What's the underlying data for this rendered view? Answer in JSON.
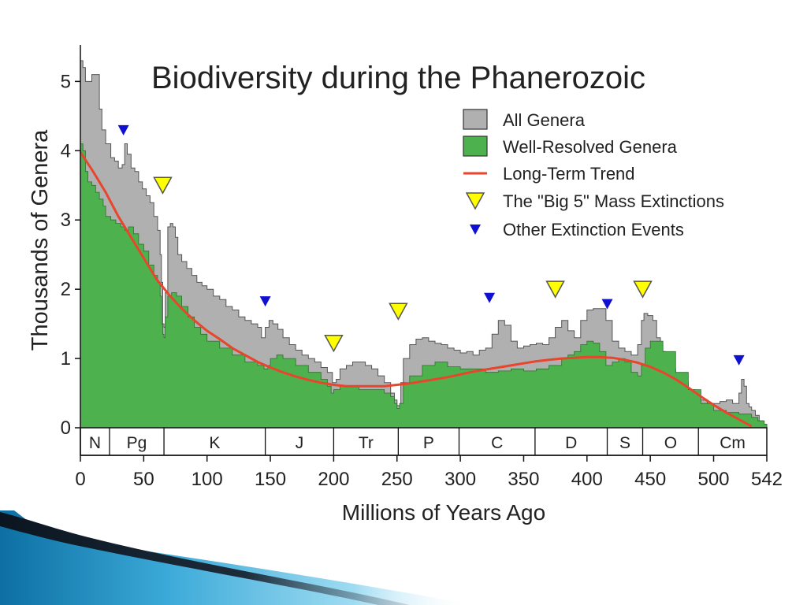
{
  "slide": {
    "accent_colors": [
      "#1b8fc4",
      "#5fc6ea",
      "#101a24"
    ]
  },
  "chart_data": {
    "type": "area",
    "title": "Biodiversity during the Phanerozoic",
    "xlabel": "Millions of Years Ago",
    "ylabel": "Thousands of Genera",
    "xlim": [
      0,
      542
    ],
    "ylim": [
      0,
      5.3
    ],
    "x_ticks": [
      0,
      50,
      100,
      150,
      200,
      250,
      300,
      350,
      400,
      450,
      500,
      542
    ],
    "y_ticks": [
      0,
      1,
      2,
      3,
      4,
      5
    ],
    "legend_position": "top-right",
    "colors": {
      "all_genera": "#b0b0b0",
      "well_resolved": "#4db24d",
      "trend": "#e8452c",
      "big5": "#ffff00",
      "other": "#1010d0"
    },
    "legend": [
      {
        "label": "All Genera",
        "kind": "box",
        "color": "#b0b0b0"
      },
      {
        "label": "Well-Resolved Genera",
        "kind": "box",
        "color": "#4db24d"
      },
      {
        "label": "Long-Term Trend",
        "kind": "line",
        "color": "#e8452c"
      },
      {
        "label": "The \"Big 5\" Mass Extinctions",
        "kind": "big-triangle",
        "color": "#ffff00"
      },
      {
        "label": "Other Extinction Events",
        "kind": "small-triangle",
        "color": "#1010d0"
      }
    ],
    "series": [
      {
        "name": "All Genera",
        "x": [
          0,
          2,
          4,
          6,
          9,
          12,
          15,
          17,
          20,
          24,
          27,
          30,
          33,
          35,
          37,
          40,
          43,
          46,
          49,
          52,
          55,
          58,
          61,
          63,
          64,
          65,
          66,
          67,
          69,
          71,
          73,
          75,
          77,
          80,
          84,
          88,
          92,
          96,
          100,
          105,
          110,
          115,
          120,
          125,
          130,
          135,
          140,
          143,
          146,
          149,
          152,
          156,
          160,
          165,
          170,
          175,
          180,
          185,
          190,
          195,
          199,
          202,
          205,
          210,
          215,
          220,
          225,
          230,
          235,
          240,
          245,
          248,
          250,
          252,
          253,
          255,
          260,
          265,
          270,
          275,
          280,
          285,
          290,
          295,
          300,
          305,
          310,
          315,
          320,
          325,
          330,
          335,
          340,
          345,
          350,
          355,
          360,
          365,
          370,
          375,
          380,
          385,
          390,
          395,
          400,
          405,
          410,
          415,
          420,
          425,
          430,
          435,
          440,
          443,
          445,
          448,
          452,
          455,
          458,
          462,
          466,
          470,
          475,
          480,
          485,
          490,
          495,
          500,
          505,
          510,
          515,
          518,
          520,
          522,
          524,
          526,
          528,
          530,
          533,
          536,
          539,
          542
        ],
        "values": [
          5.3,
          5.2,
          5.0,
          5.0,
          5.1,
          5.1,
          4.6,
          4.3,
          4.1,
          3.9,
          3.85,
          3.75,
          3.8,
          4.1,
          3.95,
          3.75,
          3.7,
          3.55,
          3.45,
          3.35,
          3.25,
          3.05,
          2.85,
          2.5,
          2.1,
          1.5,
          1.45,
          1.95,
          2.9,
          2.95,
          2.9,
          2.75,
          2.5,
          2.4,
          2.3,
          2.2,
          2.1,
          2.05,
          2.0,
          1.9,
          1.85,
          1.75,
          1.7,
          1.6,
          1.55,
          1.5,
          1.45,
          1.3,
          1.45,
          1.55,
          1.5,
          1.42,
          1.3,
          1.2,
          1.12,
          1.05,
          1.0,
          0.95,
          0.87,
          0.8,
          0.65,
          0.7,
          0.85,
          0.9,
          0.95,
          0.95,
          0.9,
          0.85,
          0.75,
          0.65,
          0.5,
          0.4,
          0.32,
          0.3,
          0.65,
          1.0,
          1.2,
          1.28,
          1.3,
          1.25,
          1.22,
          1.2,
          1.15,
          1.12,
          1.08,
          1.1,
          1.05,
          1.12,
          1.15,
          1.35,
          1.55,
          1.48,
          1.25,
          1.15,
          1.18,
          1.2,
          1.22,
          1.2,
          1.3,
          1.45,
          1.55,
          1.4,
          1.3,
          1.55,
          1.7,
          1.72,
          1.72,
          1.55,
          1.25,
          1.15,
          1.1,
          1.05,
          1.2,
          1.55,
          1.65,
          1.62,
          1.55,
          1.3,
          1.1,
          0.95,
          0.85,
          0.75,
          0.65,
          0.55,
          0.45,
          0.4,
          0.35,
          0.35,
          0.38,
          0.4,
          0.35,
          0.35,
          0.5,
          0.7,
          0.6,
          0.35,
          0.3,
          0.25,
          0.18,
          0.1,
          0.05,
          0.0
        ]
      },
      {
        "name": "Well-Resolved Genera",
        "x": [
          0,
          2,
          4,
          6,
          9,
          12,
          15,
          18,
          20,
          24,
          28,
          32,
          35,
          38,
          42,
          46,
          50,
          54,
          58,
          61,
          63,
          64,
          65,
          66,
          67,
          69,
          72,
          76,
          80,
          85,
          90,
          95,
          100,
          110,
          120,
          130,
          140,
          145,
          148,
          150,
          155,
          160,
          170,
          180,
          190,
          195,
          198,
          200,
          205,
          210,
          220,
          230,
          240,
          245,
          248,
          250,
          252,
          255,
          260,
          270,
          280,
          290,
          300,
          310,
          320,
          330,
          340,
          350,
          360,
          370,
          380,
          385,
          390,
          395,
          400,
          405,
          410,
          415,
          420,
          425,
          430,
          435,
          440,
          443,
          446,
          450,
          455,
          460,
          470,
          480,
          490,
          500,
          510,
          520,
          525,
          530,
          535,
          540,
          542
        ],
        "values": [
          4.1,
          4.0,
          3.7,
          3.55,
          3.5,
          3.4,
          3.3,
          3.2,
          3.05,
          3.0,
          2.95,
          2.9,
          2.85,
          2.9,
          2.8,
          2.65,
          2.55,
          2.35,
          2.2,
          2.1,
          1.9,
          1.5,
          1.35,
          1.3,
          1.6,
          1.9,
          1.95,
          1.9,
          1.75,
          1.6,
          1.45,
          1.35,
          1.25,
          1.15,
          1.05,
          0.95,
          0.9,
          0.85,
          0.9,
          1.0,
          1.05,
          1.0,
          0.9,
          0.8,
          0.7,
          0.6,
          0.5,
          0.55,
          0.6,
          0.6,
          0.55,
          0.55,
          0.5,
          0.45,
          0.35,
          0.28,
          0.35,
          0.65,
          0.75,
          0.9,
          0.95,
          0.88,
          0.85,
          0.85,
          0.8,
          0.82,
          0.85,
          0.82,
          0.85,
          0.9,
          1.0,
          1.05,
          1.1,
          1.2,
          1.25,
          1.22,
          1.1,
          0.9,
          0.95,
          1.0,
          0.95,
          0.8,
          0.75,
          0.9,
          1.15,
          1.25,
          1.25,
          1.1,
          0.8,
          0.55,
          0.35,
          0.25,
          0.22,
          0.2,
          0.2,
          0.15,
          0.1,
          0.05,
          0.0
        ]
      },
      {
        "name": "Long-Term Trend",
        "x": [
          0,
          10,
          20,
          30,
          40,
          50,
          60,
          70,
          80,
          90,
          100,
          110,
          120,
          130,
          140,
          150,
          160,
          170,
          180,
          190,
          200,
          210,
          220,
          230,
          240,
          250,
          260,
          270,
          280,
          290,
          300,
          310,
          320,
          330,
          340,
          350,
          360,
          370,
          380,
          390,
          400,
          410,
          420,
          430,
          440,
          450,
          460,
          470,
          480,
          490,
          500,
          510,
          520,
          530
        ],
        "values": [
          3.98,
          3.7,
          3.4,
          3.05,
          2.75,
          2.45,
          2.15,
          1.92,
          1.72,
          1.55,
          1.4,
          1.28,
          1.15,
          1.05,
          0.95,
          0.87,
          0.8,
          0.74,
          0.69,
          0.65,
          0.62,
          0.6,
          0.6,
          0.6,
          0.6,
          0.62,
          0.64,
          0.67,
          0.7,
          0.73,
          0.77,
          0.81,
          0.84,
          0.87,
          0.9,
          0.93,
          0.96,
          0.98,
          1.0,
          1.01,
          1.02,
          1.02,
          1.01,
          0.98,
          0.94,
          0.88,
          0.8,
          0.7,
          0.58,
          0.45,
          0.33,
          0.22,
          0.12,
          0.02
        ]
      }
    ],
    "big5_extinctions": [
      {
        "x": 65,
        "y": 3.5
      },
      {
        "x": 200,
        "y": 1.22
      },
      {
        "x": 251,
        "y": 1.68
      },
      {
        "x": 375,
        "y": 2.0
      },
      {
        "x": 444,
        "y": 2.0
      }
    ],
    "other_extinctions": [
      {
        "x": 34,
        "y": 4.3
      },
      {
        "x": 146,
        "y": 1.83
      },
      {
        "x": 323,
        "y": 1.88
      },
      {
        "x": 416,
        "y": 1.79
      },
      {
        "x": 520,
        "y": 0.98
      }
    ],
    "periods": [
      {
        "label": "N",
        "start": 0,
        "end": 23
      },
      {
        "label": "Pg",
        "start": 23,
        "end": 66
      },
      {
        "label": "K",
        "start": 66,
        "end": 146
      },
      {
        "label": "J",
        "start": 146,
        "end": 200
      },
      {
        "label": "Tr",
        "start": 200,
        "end": 251
      },
      {
        "label": "P",
        "start": 251,
        "end": 299
      },
      {
        "label": "C",
        "start": 299,
        "end": 359
      },
      {
        "label": "D",
        "start": 359,
        "end": 416
      },
      {
        "label": "S",
        "start": 416,
        "end": 444
      },
      {
        "label": "O",
        "start": 444,
        "end": 488
      },
      {
        "label": "Cm",
        "start": 488,
        "end": 542
      }
    ]
  }
}
